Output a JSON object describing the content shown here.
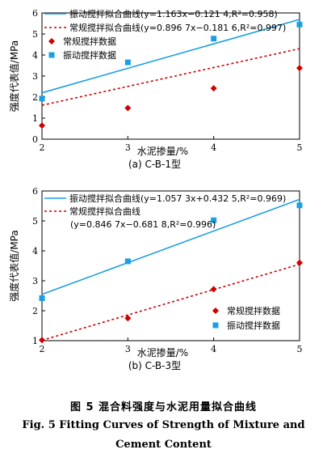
{
  "chart_data": [
    {
      "type": "scatter",
      "subtitle": "(a)  C-B-1型",
      "xlabel": "水泥掺量/%",
      "ylabel": "强度代表值/MPa",
      "xlim": [
        2,
        5
      ],
      "ylim": [
        0,
        6
      ],
      "xticks": [
        2,
        3,
        4,
        5
      ],
      "yticks": [
        0,
        1,
        2,
        3,
        4,
        5,
        6
      ],
      "legend_position": "top-left",
      "series": [
        {
          "name": "振动搅拌拟合曲线(y=1.163x−0.121 4,R²=0.958)",
          "kind": "fit",
          "color": "#1b9fe0",
          "style": "solid",
          "slope": 1.163,
          "intercept": -0.1214
        },
        {
          "name": "常规搅拌拟合曲线(y=0.896 7x−0.181 6,R²=0.997)",
          "kind": "fit",
          "color": "#cc0000",
          "style": "dotted",
          "slope": 0.8967,
          "intercept": -0.1816
        },
        {
          "name": "常规搅拌数据",
          "kind": "points",
          "marker": "diamond",
          "color": "#cc0000",
          "x": [
            2,
            3,
            4,
            5
          ],
          "y": [
            0.65,
            1.48,
            2.42,
            3.38
          ]
        },
        {
          "name": "振动搅拌数据",
          "kind": "points",
          "marker": "square",
          "color": "#1b9fe0",
          "x": [
            2,
            3,
            4,
            5
          ],
          "y": [
            1.93,
            3.65,
            4.78,
            5.45
          ]
        }
      ]
    },
    {
      "type": "scatter",
      "subtitle": "(b)  C-B-3型",
      "xlabel": "水泥掺量/%",
      "ylabel": "强度代表值/MPa",
      "xlim": [
        2,
        5
      ],
      "ylim": [
        1,
        6
      ],
      "xticks": [
        2,
        3,
        4,
        5
      ],
      "yticks": [
        1,
        2,
        3,
        4,
        5,
        6
      ],
      "legend_position": "top-left / bottom-right",
      "series": [
        {
          "name": "振动搅拌拟合曲线(y=1.057 3x+0.432 5,R²=0.969)",
          "kind": "fit",
          "color": "#1b9fe0",
          "style": "solid",
          "slope": 1.0573,
          "intercept": 0.4325
        },
        {
          "name": "常规搅拌拟合曲线",
          "name_line2": "(y=0.846 7x−0.681 8,R²=0.996)",
          "kind": "fit",
          "color": "#cc0000",
          "style": "dotted",
          "slope": 0.8467,
          "intercept": -0.6818
        },
        {
          "name": "常规搅拌数据",
          "kind": "points",
          "marker": "diamond",
          "color": "#cc0000",
          "x": [
            2,
            3,
            4,
            5
          ],
          "y": [
            1.02,
            1.75,
            2.72,
            3.6
          ]
        },
        {
          "name": "振动搅拌数据",
          "kind": "points",
          "marker": "square",
          "color": "#1b9fe0",
          "x": [
            2,
            3,
            4,
            5
          ],
          "y": [
            2.42,
            3.65,
            5.02,
            5.52
          ]
        }
      ]
    }
  ],
  "caption": {
    "cn": "图 5   混合料强度与水泥用量拟合曲线",
    "en_line1": "Fig. 5    Fitting Curves of Strength of Mixture and",
    "en_line2": "Cement Content"
  }
}
